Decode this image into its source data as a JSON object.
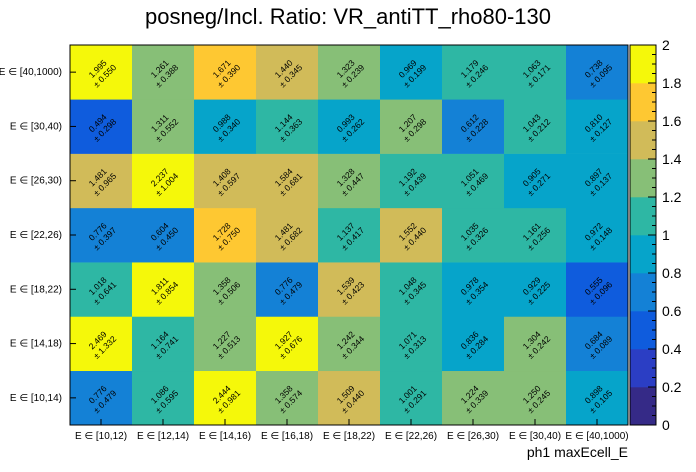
{
  "chart_data": {
    "type": "heatmap",
    "title": "posneg/Incl. Ratio: VR_antiTT_rho80-130",
    "xlabel": "ph1 maxEcell_E",
    "ylabel": "",
    "x_categories": [
      "E ∈ [10,12)",
      "E ∈ [12,14)",
      "E ∈ [14,16)",
      "E ∈ [16,18)",
      "E ∈ [18,22)",
      "E ∈ [22,26)",
      "E ∈ [26,30)",
      "E ∈ [30,40)",
      "E ∈ [40,1000)"
    ],
    "y_categories": [
      "E ∈ [10,14)",
      "E ∈ [14,18)",
      "E ∈ [18,22)",
      "E ∈ [22,26)",
      "E ∈ [26,30)",
      "E ∈ [30,40)",
      "E ∈ [40,1000)"
    ],
    "values": [
      [
        0.776,
        1.086,
        2.444,
        1.358,
        1.509,
        1.001,
        1.224,
        1.25,
        0.898
      ],
      [
        2.469,
        1.164,
        1.227,
        1.927,
        1.242,
        1.071,
        0.836,
        1.304,
        0.684
      ],
      [
        1.018,
        1.811,
        1.358,
        0.776,
        1.539,
        1.048,
        0.978,
        0.929,
        0.555
      ],
      [
        0.776,
        0.604,
        1.728,
        1.481,
        1.137,
        1.552,
        1.035,
        1.161,
        0.972
      ],
      [
        1.481,
        2.237,
        1.408,
        1.584,
        1.328,
        1.192,
        1.051,
        0.905,
        0.897
      ],
      [
        0.494,
        1.311,
        0.988,
        1.144,
        0.993,
        1.207,
        0.612,
        1.043,
        0.81
      ],
      [
        1.995,
        1.261,
        1.671,
        1.44,
        1.323,
        0.969,
        1.179,
        1.063,
        0.738
      ]
    ],
    "errors": [
      [
        0.479,
        0.595,
        0.981,
        0.574,
        0.44,
        0.291,
        0.339,
        0.245,
        0.105
      ],
      [
        1.332,
        0.741,
        0.513,
        0.676,
        0.344,
        0.313,
        0.284,
        0.242,
        0.089
      ],
      [
        0.641,
        0.854,
        0.506,
        0.479,
        0.423,
        0.345,
        0.354,
        0.225,
        0.096
      ],
      [
        0.397,
        0.45,
        0.75,
        0.682,
        0.417,
        0.44,
        0.326,
        0.256,
        0.148
      ],
      [
        0.965,
        1.004,
        0.597,
        0.681,
        0.447,
        0.439,
        0.469,
        0.271,
        0.137
      ],
      [
        0.298,
        0.552,
        0.34,
        0.363,
        0.262,
        0.298,
        0.228,
        0.212,
        0.127
      ],
      [
        0.55,
        0.388,
        0.39,
        0.345,
        0.239,
        0.199,
        0.246,
        0.171,
        0.095
      ]
    ],
    "zlim": [
      0,
      2
    ],
    "z_ticks": [
      "0",
      "0.2",
      "0.4",
      "0.6",
      "0.8",
      "1",
      "1.2",
      "1.4",
      "1.6",
      "1.8",
      "2"
    ],
    "error_prefix": "± ",
    "palette": [
      "#352a87",
      "#2b3ec4",
      "#0f5cdd",
      "#1481d6",
      "#06a4ca",
      "#2eb7a4",
      "#87bf77",
      "#d1bb59",
      "#fec832",
      "#f5f80a"
    ],
    "grid": false,
    "legend": "colorbar-right"
  }
}
